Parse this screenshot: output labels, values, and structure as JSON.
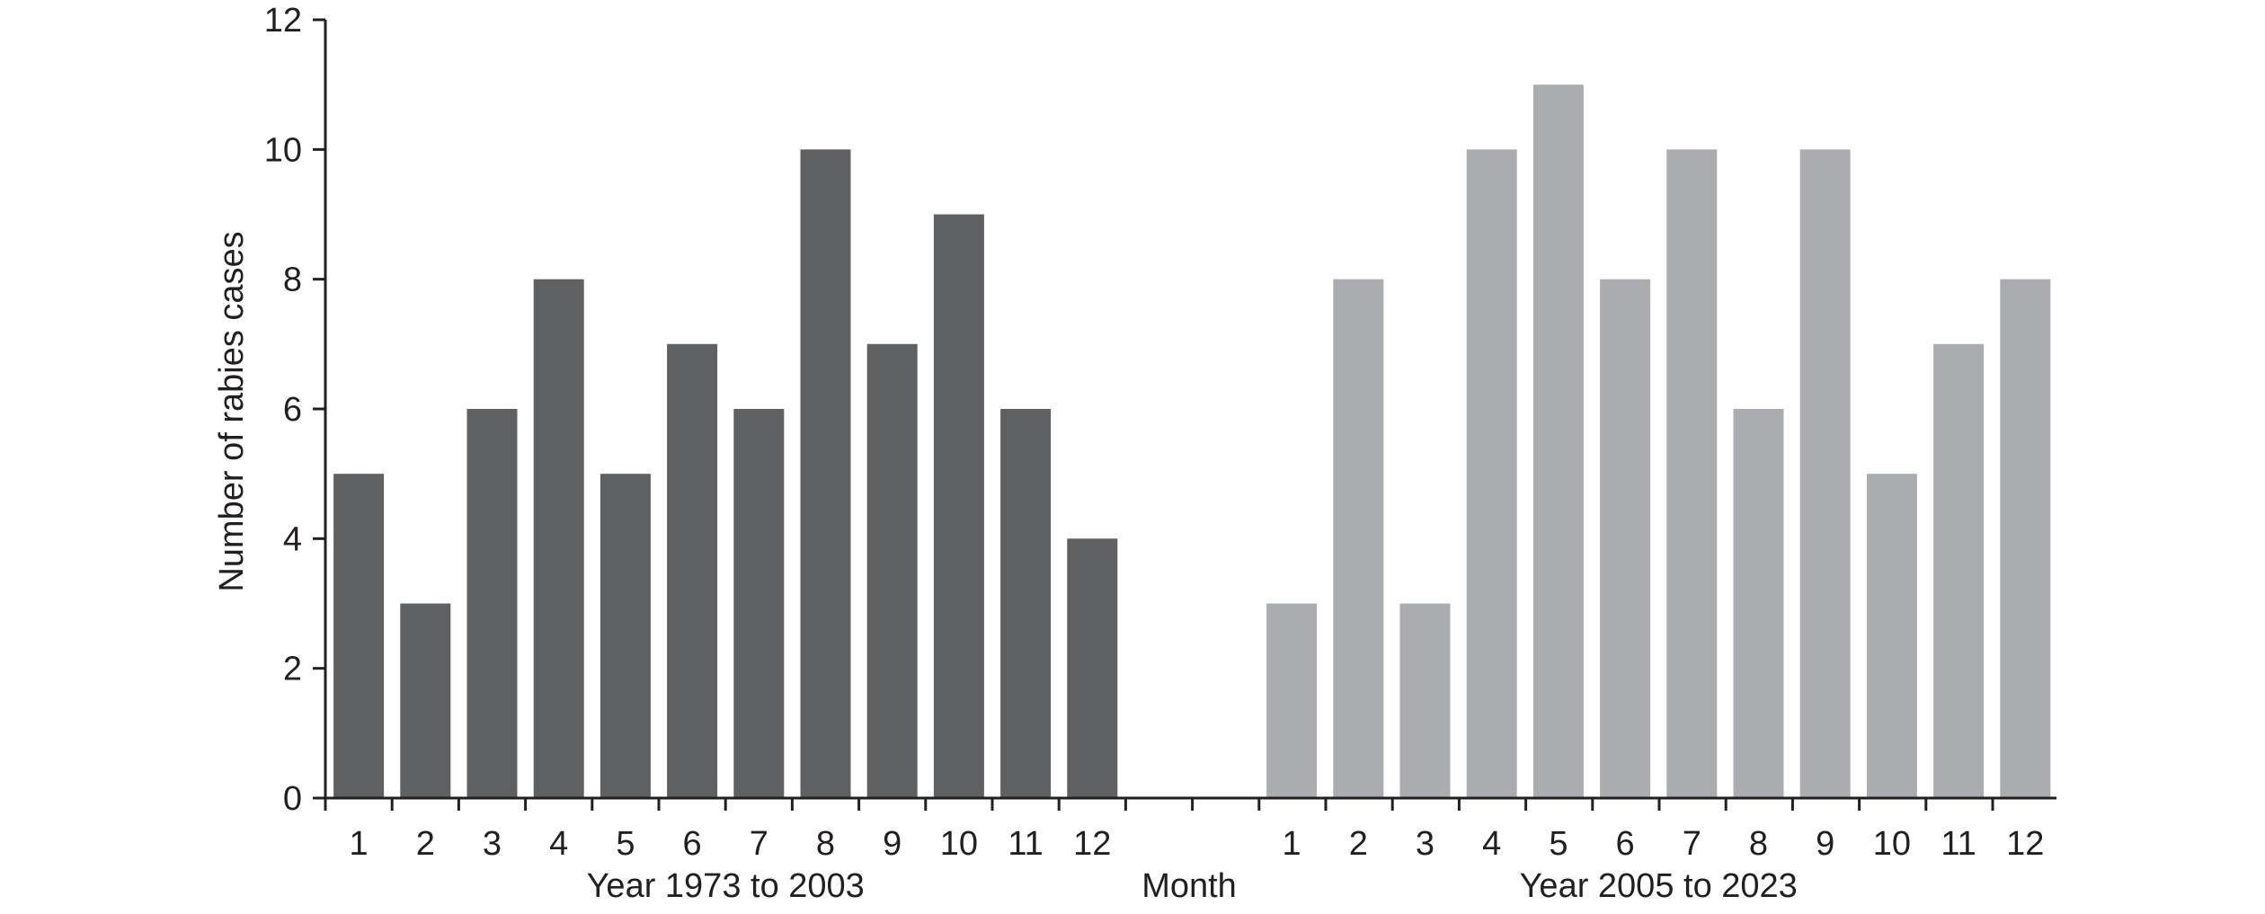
{
  "chart_data": {
    "type": "bar",
    "ylabel": "Number of rabies cases",
    "xlabel": "Month",
    "ylim": [
      0,
      12
    ],
    "yticks": [
      0,
      2,
      4,
      6,
      8,
      10,
      12
    ],
    "grid": false,
    "groups": [
      {
        "name": "Year 1973 to 2003",
        "color": "#5f6062",
        "categories": [
          "1",
          "2",
          "3",
          "4",
          "5",
          "6",
          "7",
          "8",
          "9",
          "10",
          "11",
          "12"
        ],
        "values": [
          5,
          3,
          6,
          8,
          5,
          7,
          6,
          10,
          7,
          9,
          6,
          4
        ]
      },
      {
        "name": "Year 2005 to 2023",
        "color": "#abacb0",
        "categories": [
          "1",
          "2",
          "3",
          "4",
          "5",
          "6",
          "7",
          "8",
          "9",
          "10",
          "11",
          "12"
        ],
        "values": [
          3,
          8,
          3,
          10,
          11,
          8,
          10,
          6,
          10,
          5,
          7,
          8
        ]
      }
    ]
  }
}
